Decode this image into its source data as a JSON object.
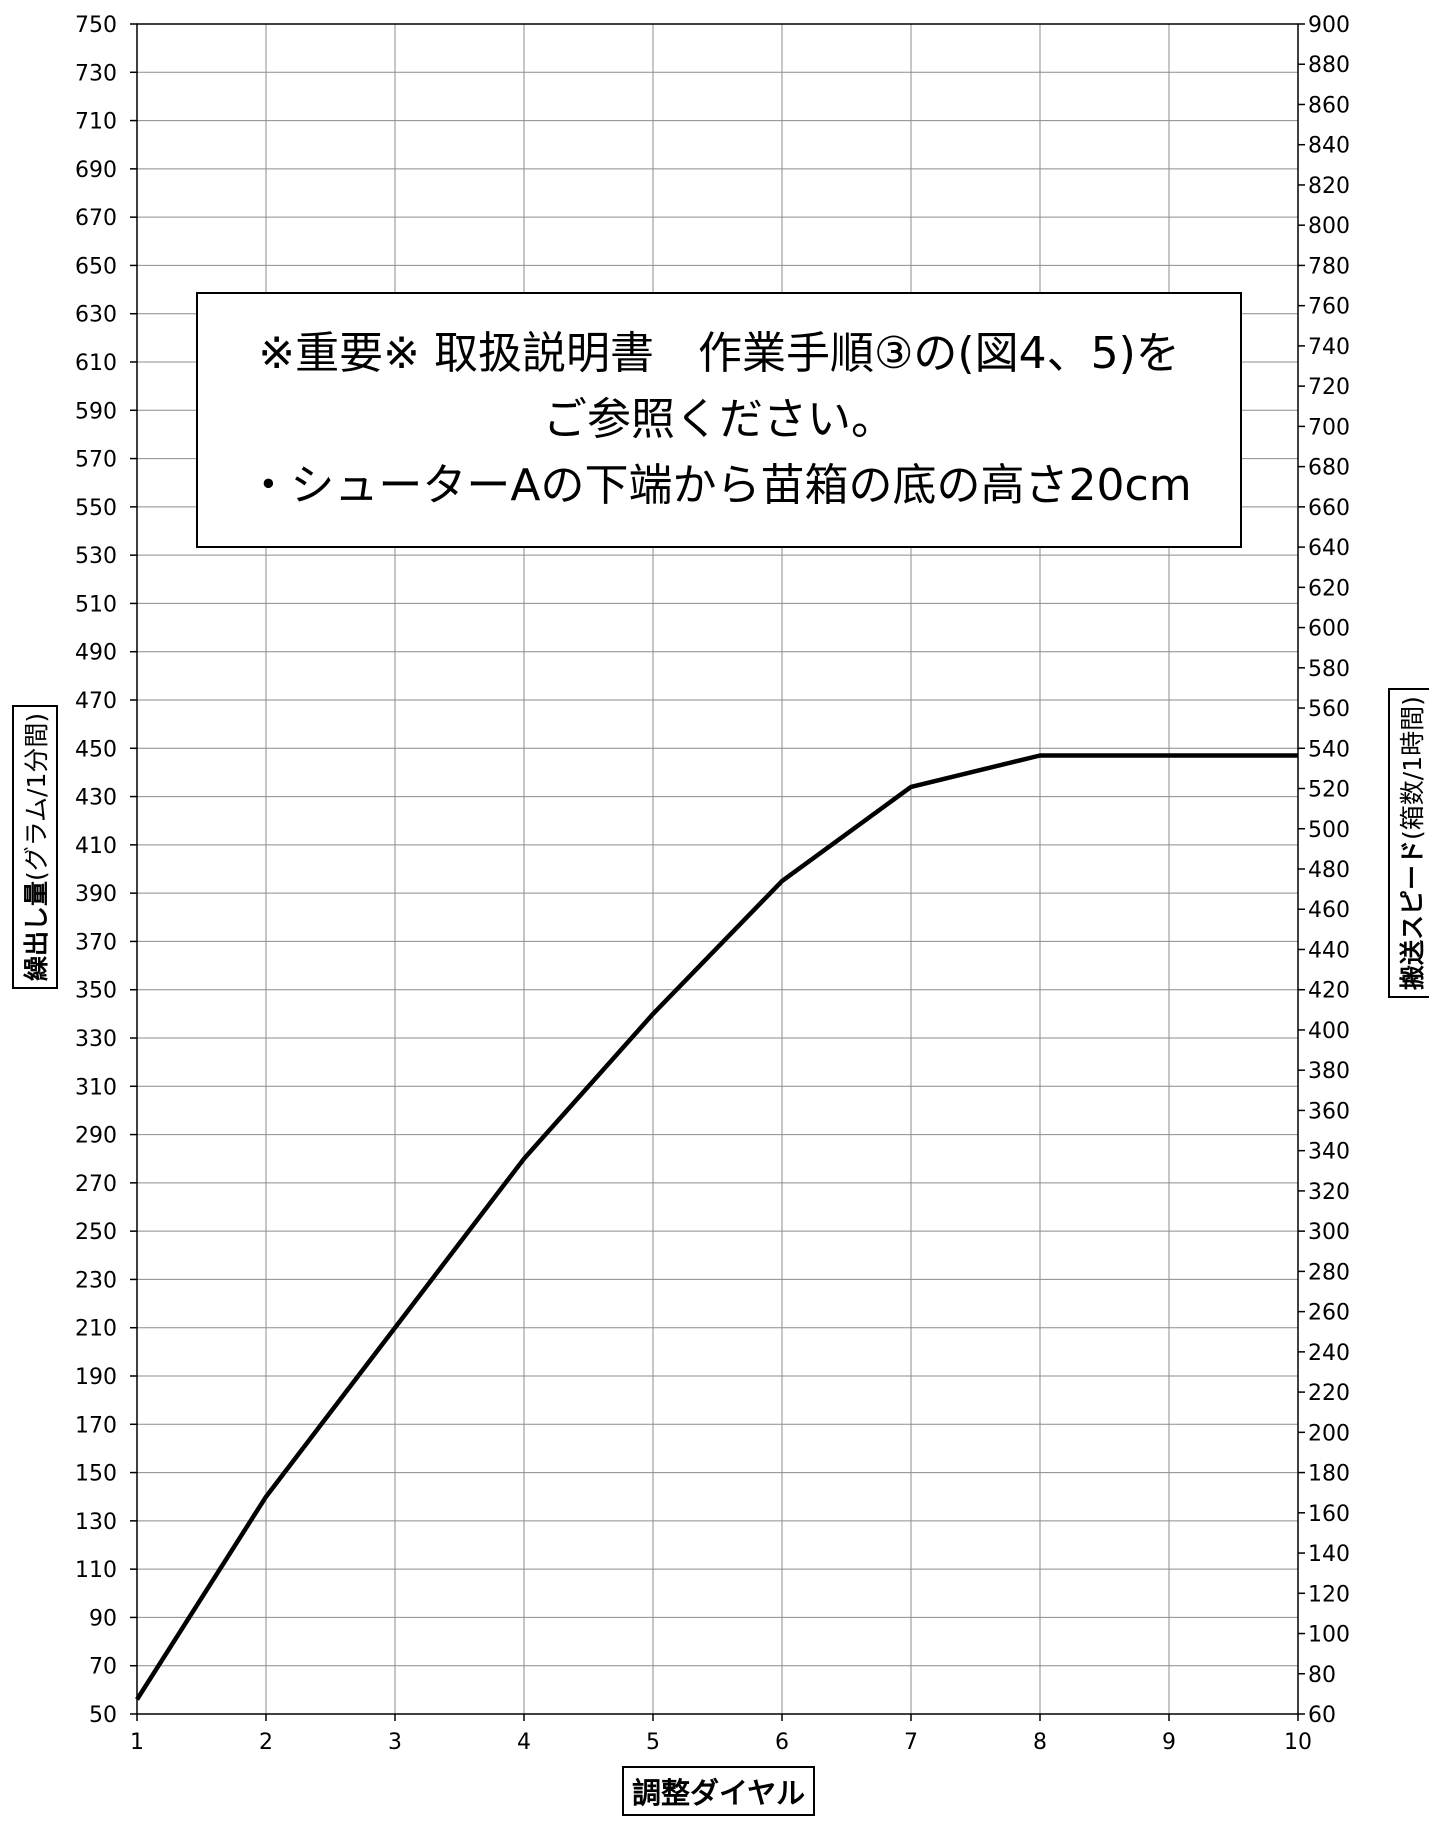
{
  "chart_data": {
    "type": "line",
    "x": [
      1,
      2,
      3,
      4,
      5,
      6,
      7,
      8,
      9,
      10
    ],
    "series": [
      {
        "values": [
          56,
          140,
          210,
          280,
          340,
          395,
          434,
          447,
          447,
          447
        ]
      }
    ],
    "xlabel": "調整ダイヤル",
    "ylabel_bold": "繰出し量",
    "ylabel_unit": "(グラム/1分間)",
    "y2label_bold": "搬送スピード",
    "y2label_unit": "(箱数/1時間)",
    "xlim": [
      1,
      10
    ],
    "ylim": [
      50,
      750
    ],
    "y2lim": [
      60,
      900
    ],
    "x_ticks": [
      1,
      2,
      3,
      4,
      5,
      6,
      7,
      8,
      9,
      10
    ],
    "y_ticks": [
      50,
      70,
      90,
      110,
      130,
      150,
      170,
      190,
      210,
      230,
      250,
      270,
      290,
      310,
      330,
      350,
      370,
      390,
      410,
      430,
      450,
      470,
      490,
      510,
      530,
      550,
      570,
      590,
      610,
      630,
      650,
      670,
      690,
      710,
      730,
      750
    ],
    "y2_ticks": [
      60,
      80,
      100,
      120,
      140,
      160,
      180,
      200,
      220,
      240,
      260,
      280,
      300,
      320,
      340,
      360,
      380,
      400,
      420,
      440,
      460,
      480,
      500,
      520,
      540,
      560,
      580,
      600,
      620,
      640,
      660,
      680,
      700,
      720,
      740,
      760,
      780,
      800,
      820,
      840,
      860,
      880,
      900
    ],
    "grid": true,
    "line_color": "#000000"
  },
  "note": {
    "line1": "※重要※ 取扱説明書　作業手順③の(図4、5)を",
    "line2": "ご参照ください。",
    "line3": "・シューターAの下端から苗箱の底の高さ20cm"
  }
}
